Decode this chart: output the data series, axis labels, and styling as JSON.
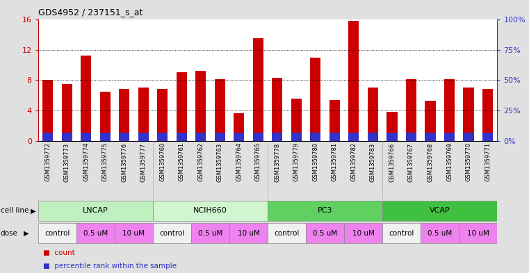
{
  "title": "GDS4952 / 237151_s_at",
  "samples": [
    "GSM1359772",
    "GSM1359773",
    "GSM1359774",
    "GSM1359775",
    "GSM1359776",
    "GSM1359777",
    "GSM1359760",
    "GSM1359761",
    "GSM1359762",
    "GSM1359763",
    "GSM1359764",
    "GSM1359765",
    "GSM1359778",
    "GSM1359779",
    "GSM1359780",
    "GSM1359781",
    "GSM1359782",
    "GSM1359783",
    "GSM1359766",
    "GSM1359767",
    "GSM1359768",
    "GSM1359769",
    "GSM1359770",
    "GSM1359771"
  ],
  "counts": [
    8.0,
    7.5,
    11.2,
    6.5,
    6.8,
    7.0,
    6.8,
    9.0,
    9.2,
    8.1,
    3.6,
    13.5,
    8.3,
    5.6,
    11.0,
    5.4,
    15.8,
    7.0,
    3.8,
    8.1,
    5.3,
    8.1,
    7.0,
    6.8
  ],
  "percentile_ranks": [
    1.1,
    1.1,
    1.1,
    1.1,
    1.1,
    1.1,
    1.1,
    1.1,
    1.1,
    1.1,
    1.1,
    1.1,
    1.1,
    1.1,
    1.1,
    1.1,
    1.1,
    1.1,
    1.1,
    1.1,
    1.1,
    1.1,
    1.1,
    1.1
  ],
  "bar_color": "#cc0000",
  "blue_color": "#3333cc",
  "ylim_left": [
    0,
    16
  ],
  "ylim_right": [
    0,
    100
  ],
  "yticks_left": [
    0,
    4,
    8,
    12,
    16
  ],
  "ytick_labels_left": [
    "0",
    "4",
    "8",
    "12",
    "16"
  ],
  "yticks_right": [
    0,
    25,
    50,
    75,
    100
  ],
  "ytick_labels_right": [
    "0%",
    "25%",
    "50%",
    "75%",
    "100%"
  ],
  "grid_lines": [
    4,
    8,
    12
  ],
  "cell_lines": [
    {
      "label": "LNCAP",
      "start": 0,
      "end": 6,
      "color": "#c0efc0"
    },
    {
      "label": "NCIH660",
      "start": 6,
      "end": 12,
      "color": "#d0f5d0"
    },
    {
      "label": "PC3",
      "start": 12,
      "end": 18,
      "color": "#60d060"
    },
    {
      "label": "VCAP",
      "start": 18,
      "end": 24,
      "color": "#40c040"
    }
  ],
  "dose_pattern": [
    {
      "label": "control",
      "start": 0,
      "end": 2,
      "color": "#f0f0f0"
    },
    {
      "label": "0.5 uM",
      "start": 2,
      "end": 4,
      "color": "#ee82ee"
    },
    {
      "label": "10 uM",
      "start": 4,
      "end": 6,
      "color": "#ee82ee"
    },
    {
      "label": "control",
      "start": 6,
      "end": 8,
      "color": "#f0f0f0"
    },
    {
      "label": "0.5 uM",
      "start": 8,
      "end": 10,
      "color": "#ee82ee"
    },
    {
      "label": "10 uM",
      "start": 10,
      "end": 12,
      "color": "#ee82ee"
    },
    {
      "label": "control",
      "start": 12,
      "end": 14,
      "color": "#f0f0f0"
    },
    {
      "label": "0.5 uM",
      "start": 14,
      "end": 16,
      "color": "#ee82ee"
    },
    {
      "label": "10 uM",
      "start": 16,
      "end": 18,
      "color": "#ee82ee"
    },
    {
      "label": "control",
      "start": 18,
      "end": 20,
      "color": "#f0f0f0"
    },
    {
      "label": "0.5 uM",
      "start": 20,
      "end": 22,
      "color": "#ee82ee"
    },
    {
      "label": "10 uM",
      "start": 22,
      "end": 24,
      "color": "#ee82ee"
    }
  ],
  "fig_bg": "#e0e0e0",
  "plot_bg": "#ffffff",
  "xtick_bg": "#c8c8c8"
}
